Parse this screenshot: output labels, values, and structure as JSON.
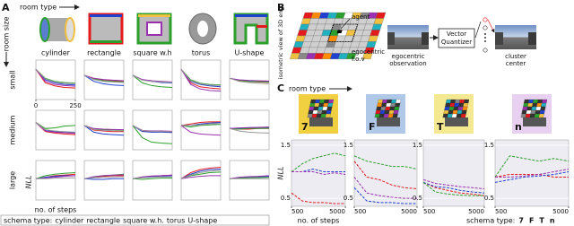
{
  "panel_a": {
    "label": "A",
    "room_type_label": "room type",
    "room_size_label": "room size",
    "room_types": [
      "cylinder",
      "rectangle",
      "square w.h",
      "torus",
      "U-shape"
    ],
    "room_sizes": [
      "small",
      "medium",
      "large"
    ],
    "y_label": "NLL",
    "x_label": "no. of steps",
    "xlim": [
      0,
      250
    ],
    "xticks": [
      0,
      250
    ],
    "ylim": [
      0.2,
      1.5
    ],
    "x": [
      0,
      60,
      120,
      180,
      250
    ],
    "plots": [
      [
        [
          [
            1.2,
            0.75,
            0.65,
            0.6,
            0.58
          ],
          [
            1.2,
            0.85,
            0.75,
            0.7,
            0.68
          ],
          [
            1.2,
            0.9,
            0.8,
            0.76,
            0.74
          ],
          [
            1.2,
            0.8,
            0.7,
            0.66,
            0.64
          ],
          [
            1.2,
            0.88,
            0.78,
            0.74,
            0.72
          ]
        ],
        [
          [
            1.0,
            0.9,
            0.85,
            0.82,
            0.8
          ],
          [
            1.0,
            0.8,
            0.72,
            0.68,
            0.66
          ],
          [
            1.0,
            0.88,
            0.82,
            0.8,
            0.78
          ],
          [
            1.0,
            0.9,
            0.86,
            0.84,
            0.82
          ],
          [
            1.0,
            0.86,
            0.8,
            0.78,
            0.76
          ]
        ],
        [
          [
            1.0,
            0.85,
            0.8,
            0.78,
            0.76
          ],
          [
            1.0,
            0.85,
            0.8,
            0.76,
            0.75
          ],
          [
            1.0,
            0.75,
            0.66,
            0.62,
            0.6
          ],
          [
            1.0,
            0.86,
            0.82,
            0.8,
            0.78
          ],
          [
            1.0,
            0.84,
            0.8,
            0.78,
            0.77
          ]
        ],
        [
          [
            1.2,
            0.75,
            0.62,
            0.58,
            0.55
          ],
          [
            1.2,
            0.8,
            0.7,
            0.65,
            0.62
          ],
          [
            1.2,
            0.85,
            0.74,
            0.7,
            0.68
          ],
          [
            1.2,
            0.7,
            0.55,
            0.5,
            0.48
          ],
          [
            1.2,
            0.82,
            0.72,
            0.68,
            0.66
          ]
        ],
        [
          [
            0.9,
            0.82,
            0.8,
            0.78,
            0.77
          ],
          [
            0.9,
            0.84,
            0.82,
            0.8,
            0.79
          ],
          [
            0.9,
            0.83,
            0.8,
            0.79,
            0.78
          ],
          [
            0.9,
            0.85,
            0.83,
            0.82,
            0.81
          ],
          [
            0.9,
            0.8,
            0.76,
            0.74,
            0.72
          ]
        ]
      ],
      [
        [
          [
            1.1,
            0.8,
            0.75,
            0.72,
            0.7
          ],
          [
            1.1,
            0.85,
            0.8,
            0.78,
            0.76
          ],
          [
            1.1,
            0.9,
            0.92,
            0.98,
            1.0
          ],
          [
            1.1,
            0.82,
            0.78,
            0.76,
            0.74
          ],
          [
            1.1,
            0.86,
            0.82,
            0.8,
            0.78
          ]
        ],
        [
          [
            1.0,
            0.85,
            0.82,
            0.8,
            0.8
          ],
          [
            1.0,
            0.78,
            0.72,
            0.7,
            0.68
          ],
          [
            1.0,
            0.88,
            0.86,
            0.86,
            0.85
          ],
          [
            1.0,
            0.9,
            0.88,
            0.87,
            0.86
          ],
          [
            1.0,
            0.87,
            0.84,
            0.83,
            0.82
          ]
        ],
        [
          [
            1.0,
            0.82,
            0.8,
            0.8,
            0.79
          ],
          [
            1.0,
            0.8,
            0.78,
            0.78,
            0.77
          ],
          [
            1.0,
            0.6,
            0.45,
            0.42,
            0.4
          ],
          [
            1.0,
            0.84,
            0.82,
            0.82,
            0.81
          ],
          [
            1.0,
            0.83,
            0.81,
            0.8,
            0.8
          ]
        ],
        [
          [
            1.0,
            1.05,
            1.1,
            1.12,
            1.12
          ],
          [
            1.0,
            1.0,
            1.05,
            1.08,
            1.1
          ],
          [
            1.0,
            0.95,
            1.0,
            1.02,
            1.04
          ],
          [
            1.0,
            0.78,
            0.72,
            0.7,
            0.68
          ],
          [
            1.0,
            1.0,
            1.02,
            1.05,
            1.06
          ]
        ],
        [
          [
            0.9,
            0.88,
            0.88,
            0.9,
            0.9
          ],
          [
            0.9,
            0.9,
            0.92,
            0.93,
            0.94
          ],
          [
            0.9,
            0.88,
            0.9,
            0.9,
            0.91
          ],
          [
            0.9,
            0.92,
            0.93,
            0.94,
            0.95
          ],
          [
            0.9,
            0.82,
            0.78,
            0.76,
            0.75
          ]
        ]
      ],
      [
        [
          [
            0.9,
            0.95,
            1.0,
            1.02,
            1.05
          ],
          [
            0.9,
            0.95,
            0.98,
            1.0,
            1.0
          ],
          [
            0.9,
            1.0,
            1.05,
            1.08,
            1.1
          ],
          [
            0.9,
            0.92,
            0.95,
            0.98,
            1.0
          ],
          [
            0.9,
            0.9,
            0.92,
            0.92,
            0.93
          ]
        ],
        [
          [
            0.9,
            0.95,
            0.98,
            1.0,
            1.0
          ],
          [
            0.9,
            0.88,
            0.88,
            0.9,
            0.9
          ],
          [
            0.9,
            0.96,
            1.0,
            1.02,
            1.05
          ],
          [
            0.9,
            0.97,
            1.0,
            1.02,
            1.03
          ],
          [
            0.9,
            0.93,
            0.95,
            0.96,
            0.97
          ]
        ],
        [
          [
            0.9,
            0.95,
            0.98,
            1.0,
            1.02
          ],
          [
            0.9,
            0.94,
            0.97,
            0.98,
            1.0
          ],
          [
            0.9,
            0.88,
            0.9,
            0.92,
            0.92
          ],
          [
            0.9,
            0.96,
            0.99,
            1.0,
            1.02
          ],
          [
            0.9,
            0.93,
            0.95,
            0.96,
            0.96
          ]
        ],
        [
          [
            0.9,
            1.1,
            1.2,
            1.25,
            1.28
          ],
          [
            0.9,
            1.05,
            1.15,
            1.2,
            1.22
          ],
          [
            0.9,
            1.0,
            1.05,
            1.1,
            1.12
          ],
          [
            0.9,
            0.95,
            0.98,
            1.0,
            1.0
          ],
          [
            0.9,
            1.02,
            1.1,
            1.15,
            1.18
          ]
        ],
        [
          [
            0.9,
            0.92,
            0.94,
            0.95,
            0.96
          ],
          [
            0.9,
            0.93,
            0.95,
            0.96,
            0.97
          ],
          [
            0.9,
            0.92,
            0.93,
            0.94,
            0.95
          ],
          [
            0.9,
            0.95,
            0.97,
            0.98,
            1.0
          ],
          [
            0.9,
            0.9,
            0.9,
            0.9,
            0.9
          ]
        ]
      ]
    ],
    "legend": {
      "title": "schema type:",
      "items": [
        {
          "name": "cylinder",
          "color": "#e41a1c"
        },
        {
          "name": "rectangle",
          "color": "#2040d0"
        },
        {
          "name": "square w.h.",
          "color": "#2ca02c"
        },
        {
          "name": "torus",
          "color": "#9b30b0"
        },
        {
          "name": "U-shape",
          "color": "#999999"
        }
      ]
    }
  },
  "panel_b": {
    "label": "B",
    "iso_label": "isometric view of 3D env",
    "agent": "agent",
    "fov": [
      "egocentric",
      "f.o.v"
    ],
    "observation": [
      "egocentric",
      "observation"
    ],
    "quantizer": [
      "Vector",
      "Quantizer"
    ],
    "cluster": [
      "cluster",
      "center"
    ]
  },
  "panel_c": {
    "label": "C",
    "room_type_label": "room type",
    "rooms": [
      "7",
      "F",
      "T",
      "n"
    ],
    "y_label": "NLL",
    "x_label": "no. of steps",
    "xlim": [
      500,
      5000
    ],
    "xticks": [
      500,
      5000
    ],
    "ylim": [
      0.35,
      1.6
    ],
    "yticks": [
      0.5,
      1.5
    ],
    "x": [
      500,
      1400,
      2300,
      3200,
      4100,
      5000
    ],
    "plots": [
      [
        [
          0.6,
          0.45,
          0.42,
          0.42,
          0.4,
          0.4
        ],
        [
          1.0,
          1.0,
          1.05,
          1.0,
          1.0,
          1.0
        ],
        [
          1.0,
          1.15,
          1.25,
          1.3,
          1.35,
          1.3
        ],
        [
          1.0,
          1.0,
          1.0,
          0.95,
          0.98,
          0.95
        ]
      ],
      [
        [
          1.2,
          0.9,
          0.85,
          0.75,
          0.7,
          0.68
        ],
        [
          0.7,
          0.45,
          0.42,
          0.42,
          0.4,
          0.4
        ],
        [
          1.3,
          1.2,
          1.15,
          1.1,
          1.1,
          1.05
        ],
        [
          0.9,
          0.6,
          0.55,
          0.52,
          0.5,
          0.5
        ]
      ],
      [
        [
          0.8,
          0.7,
          0.65,
          0.6,
          0.58,
          0.55
        ],
        [
          0.8,
          0.72,
          0.7,
          0.65,
          0.62,
          0.6
        ],
        [
          0.8,
          0.62,
          0.58,
          0.56,
          0.55,
          0.55
        ],
        [
          0.85,
          0.78,
          0.75,
          0.72,
          0.7,
          0.68
        ]
      ],
      [
        [
          0.9,
          0.95,
          0.95,
          0.95,
          0.9,
          0.9
        ],
        [
          0.8,
          0.85,
          0.9,
          0.92,
          0.95,
          1.0
        ],
        [
          0.9,
          1.3,
          1.25,
          1.2,
          1.25,
          1.2
        ],
        [
          0.9,
          0.9,
          0.92,
          0.95,
          1.0,
          1.05
        ]
      ]
    ],
    "legend": {
      "title": "schema type:",
      "items": [
        {
          "name": "7",
          "color": "#e41a1c"
        },
        {
          "name": "F",
          "color": "#2040d0"
        },
        {
          "name": "T",
          "color": "#2ca02c"
        },
        {
          "name": "n",
          "color": "#9b30b0"
        }
      ]
    }
  }
}
